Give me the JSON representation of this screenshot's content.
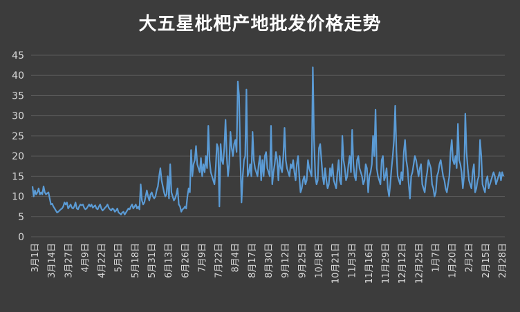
{
  "colors": {
    "background": "#3c3c3c",
    "line": "#5b9bd5",
    "grid": "#5a5a5a",
    "text": "#d9d9d9",
    "title": "#ffffff"
  },
  "chart_data": {
    "type": "line",
    "title": "大五星枇杷产地批发价格走势",
    "xlabel": "",
    "ylabel": "",
    "ylim": [
      0,
      45
    ],
    "yticks": [
      0,
      5,
      10,
      15,
      20,
      25,
      30,
      35,
      40,
      45
    ],
    "grid": true,
    "legend": "none",
    "x_tick_labels": [
      "3月1日",
      "3月14日",
      "3月27日",
      "4月9日",
      "4月22日",
      "5月5日",
      "5月18日",
      "5月31日",
      "6月13日",
      "6月26日",
      "7月9日",
      "7月22日",
      "8月4日",
      "8月17日",
      "8月30日",
      "9月12日",
      "9月25日",
      "10月8日",
      "10月21日",
      "11月3日",
      "11月16日",
      "11月29日",
      "12月12日",
      "12月25日",
      "1月7日",
      "1月20日",
      "2月2日",
      "2月15日",
      "2月28日"
    ],
    "series": [
      {
        "values": [
          12.5,
          10,
          11.5,
          10.5,
          11,
          12,
          10.5,
          11,
          10.5,
          12.5,
          11,
          10.5,
          10.8,
          11,
          9.5,
          8,
          8.2,
          7.5,
          7,
          6.5,
          6,
          6.2,
          6.5,
          6.8,
          7,
          7.5,
          8.5,
          8,
          8.5,
          7,
          7.5,
          8,
          7.2,
          7,
          7.5,
          8.5,
          7,
          6.8,
          7.5,
          8,
          7.8,
          8,
          7.2,
          6.8,
          7,
          7.5,
          8,
          7.5,
          8,
          7.2,
          7.5,
          7.8,
          7,
          6.8,
          7.5,
          8,
          7,
          6.5,
          6.8,
          7.2,
          7.5,
          8,
          7.2,
          6.8,
          6.5,
          7,
          6.8,
          6.2,
          6.5,
          7,
          6,
          5.8,
          5.5,
          6,
          6.2,
          5.5,
          6,
          6.5,
          7,
          6.8,
          7.5,
          8,
          7,
          7.5,
          8,
          7,
          7.5,
          6.8,
          13,
          9,
          8,
          8.5,
          10,
          11.5,
          10,
          9,
          10.5,
          11,
          10,
          9.5,
          10,
          11.5,
          12.5,
          15,
          17,
          14,
          12.5,
          11,
          10,
          10.5,
          15,
          9.5,
          18,
          11,
          10,
          9,
          9.5,
          10.5,
          12,
          8,
          7.5,
          6.2,
          6.8,
          7,
          7.5,
          7,
          10,
          12,
          11,
          21.5,
          15,
          18,
          19,
          22.5,
          18,
          17,
          16,
          19.5,
          15,
          18,
          16,
          20,
          17,
          27.5,
          19,
          16,
          15,
          14,
          13,
          17,
          23,
          22,
          7.5,
          23,
          19,
          18,
          22,
          29,
          20,
          15,
          18,
          26,
          22,
          20,
          23,
          24,
          21,
          38.5,
          35,
          20,
          8.5,
          15,
          19,
          20,
          36.5,
          15,
          16,
          18,
          15,
          26,
          19,
          17,
          16,
          15,
          18,
          20,
          14,
          19,
          15,
          20,
          21,
          17,
          16,
          15,
          27.5,
          13,
          16,
          18,
          21,
          19,
          14,
          20,
          17,
          16,
          20,
          27,
          19,
          17,
          16,
          15,
          18,
          17,
          19,
          16,
          14,
          18,
          20,
          15,
          11,
          12,
          14,
          15,
          13,
          14,
          19,
          17,
          16,
          15,
          42,
          24,
          15,
          13,
          14,
          22,
          23,
          19,
          15,
          13,
          17,
          14,
          12,
          13,
          17,
          15,
          18,
          14,
          13,
          12,
          16,
          19,
          14,
          13,
          25,
          19,
          17,
          14,
          15,
          18,
          20,
          16,
          26.5,
          18,
          15,
          14,
          19,
          20,
          17,
          16,
          15,
          13,
          14,
          18,
          17,
          11,
          15,
          16,
          18,
          25,
          20,
          31.5,
          17,
          15,
          14,
          13,
          19,
          20,
          14,
          15,
          17,
          12,
          10,
          13,
          17,
          20,
          24,
          32.5,
          21,
          15,
          14,
          13,
          16,
          14,
          21,
          24,
          19,
          17,
          13,
          9.5,
          15,
          16,
          18,
          20,
          19,
          17,
          15,
          17,
          18,
          13,
          12,
          11,
          14,
          16,
          19,
          18,
          17,
          13,
          12,
          10,
          11,
          15,
          16,
          18,
          19,
          17,
          15,
          14,
          12,
          11,
          13,
          15,
          21,
          24,
          19,
          18,
          20,
          17,
          28,
          19,
          18,
          16,
          12,
          15,
          30.5,
          21,
          17,
          14,
          13,
          12,
          16,
          18,
          11,
          12,
          14,
          15,
          24,
          20,
          13,
          12,
          11,
          14,
          15,
          12,
          13,
          14,
          15,
          16,
          15,
          13,
          14,
          15,
          16,
          14,
          16,
          15
        ]
      }
    ]
  }
}
